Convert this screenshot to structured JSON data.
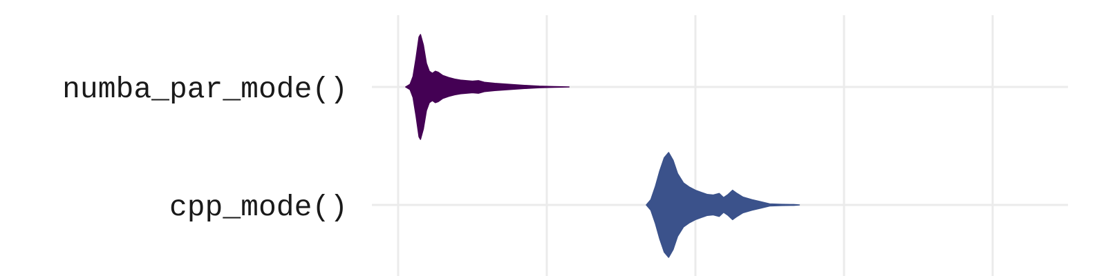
{
  "chart_data": {
    "type": "violin",
    "title": "",
    "xlabel": "",
    "ylabel": "",
    "xlim": [
      0,
      4.5
    ],
    "x_gridlines": [
      0,
      1,
      2,
      3,
      4
    ],
    "grid": true,
    "legend": "none",
    "categories": [
      "numba_par_mode()",
      "cpp_mode()"
    ],
    "series": [
      {
        "category": "numba_par_mode()",
        "color": "#440154",
        "density": [
          [
            0.05,
            0.0
          ],
          [
            0.08,
            0.05
          ],
          [
            0.1,
            0.2
          ],
          [
            0.12,
            0.55
          ],
          [
            0.14,
            0.95
          ],
          [
            0.15,
            1.0
          ],
          [
            0.17,
            0.8
          ],
          [
            0.19,
            0.45
          ],
          [
            0.21,
            0.3
          ],
          [
            0.23,
            0.26
          ],
          [
            0.25,
            0.3
          ],
          [
            0.27,
            0.28
          ],
          [
            0.3,
            0.22
          ],
          [
            0.34,
            0.18
          ],
          [
            0.38,
            0.15
          ],
          [
            0.42,
            0.13
          ],
          [
            0.46,
            0.12
          ],
          [
            0.5,
            0.11
          ],
          [
            0.54,
            0.12
          ],
          [
            0.58,
            0.09
          ],
          [
            0.65,
            0.07
          ],
          [
            0.75,
            0.05
          ],
          [
            0.85,
            0.03
          ],
          [
            0.95,
            0.015
          ],
          [
            1.05,
            0.006
          ],
          [
            1.15,
            0.0
          ]
        ]
      },
      {
        "category": "cpp_mode()",
        "color": "#3b528b",
        "density": [
          [
            1.67,
            0.0
          ],
          [
            1.7,
            0.1
          ],
          [
            1.73,
            0.35
          ],
          [
            1.76,
            0.65
          ],
          [
            1.79,
            0.9
          ],
          [
            1.82,
            1.0
          ],
          [
            1.85,
            0.85
          ],
          [
            1.88,
            0.6
          ],
          [
            1.92,
            0.42
          ],
          [
            1.96,
            0.34
          ],
          [
            2.0,
            0.28
          ],
          [
            2.04,
            0.24
          ],
          [
            2.08,
            0.2
          ],
          [
            2.12,
            0.19
          ],
          [
            2.16,
            0.22
          ],
          [
            2.19,
            0.14
          ],
          [
            2.22,
            0.2
          ],
          [
            2.25,
            0.28
          ],
          [
            2.28,
            0.22
          ],
          [
            2.32,
            0.15
          ],
          [
            2.38,
            0.1
          ],
          [
            2.44,
            0.06
          ],
          [
            2.5,
            0.02
          ],
          [
            2.58,
            0.012
          ],
          [
            2.66,
            0.008
          ],
          [
            2.7,
            0.0
          ]
        ]
      }
    ]
  }
}
